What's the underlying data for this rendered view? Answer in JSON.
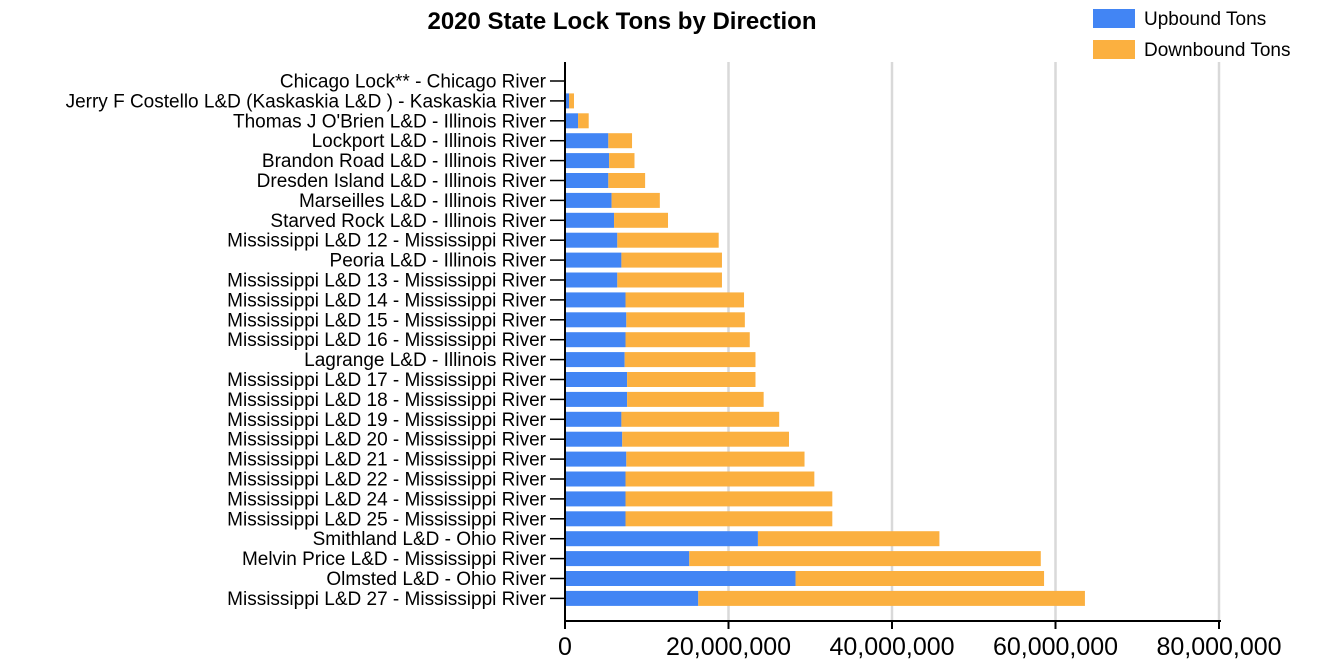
{
  "chart_data": {
    "type": "bar",
    "orientation": "horizontal",
    "stacked": true,
    "title": "2020 State Lock Tons by Direction",
    "xlabel": "",
    "ylabel": "",
    "xlim": [
      0,
      80000000
    ],
    "xticks": [
      0,
      20000000,
      40000000,
      60000000,
      80000000
    ],
    "xtick_labels": [
      "0",
      "20,000,000",
      "40,000,000",
      "60,000,000",
      "80,000,000"
    ],
    "grid": "vertical",
    "legend_position": "top-right",
    "categories": [
      "Chicago Lock** - Chicago River",
      "Jerry F Costello L&D (Kaskaskia L&D ) - Kaskaskia River",
      "Thomas J O'Brien L&D - Illinois River",
      "Lockport L&D - Illinois River",
      "Brandon Road L&D - Illinois River",
      "Dresden Island L&D - Illinois River",
      "Marseilles L&D - Illinois River",
      "Starved Rock L&D - Illinois River",
      "Mississippi L&D 12 - Mississippi River",
      "Peoria L&D - Illinois River",
      "Mississippi L&D 13 - Mississippi River",
      "Mississippi L&D 14 - Mississippi River",
      "Mississippi L&D 15 - Mississippi River",
      "Mississippi L&D 16 - Mississippi River",
      "Lagrange L&D - Illinois River",
      "Mississippi L&D 17 - Mississippi River",
      "Mississippi L&D 18 - Mississippi River",
      "Mississippi L&D 19 - Mississippi River",
      "Mississippi L&D 20 - Mississippi River",
      "Mississippi L&D 21 - Mississippi River",
      "Mississippi L&D 22 - Mississippi River",
      "Mississippi L&D 24 - Mississippi River",
      "Mississippi L&D 25 - Mississippi River",
      "Smithland L&D - Ohio River",
      "Melvin Price L&D - Mississippi River",
      "Olmsted L&D - Ohio River",
      "Mississippi L&D 27 - Mississippi River"
    ],
    "series": [
      {
        "name": "Upbound Tons",
        "color": "#4285f4",
        "values": [
          0,
          500000,
          1600000,
          5300000,
          5400000,
          5300000,
          5700000,
          6000000,
          6400000,
          6900000,
          6400000,
          7400000,
          7500000,
          7400000,
          7300000,
          7600000,
          7600000,
          6900000,
          7000000,
          7500000,
          7400000,
          7400000,
          7400000,
          23600000,
          15200000,
          28200000,
          16300000
        ]
      },
      {
        "name": "Downbound Tons",
        "color": "#fbb040",
        "values": [
          0,
          600000,
          1300000,
          2900000,
          3100000,
          4500000,
          5900000,
          6600000,
          12400000,
          12300000,
          12800000,
          14500000,
          14500000,
          15200000,
          16000000,
          15700000,
          16700000,
          19300000,
          20400000,
          21800000,
          23100000,
          25300000,
          25300000,
          22200000,
          43000000,
          30400000,
          47300000
        ]
      }
    ]
  }
}
